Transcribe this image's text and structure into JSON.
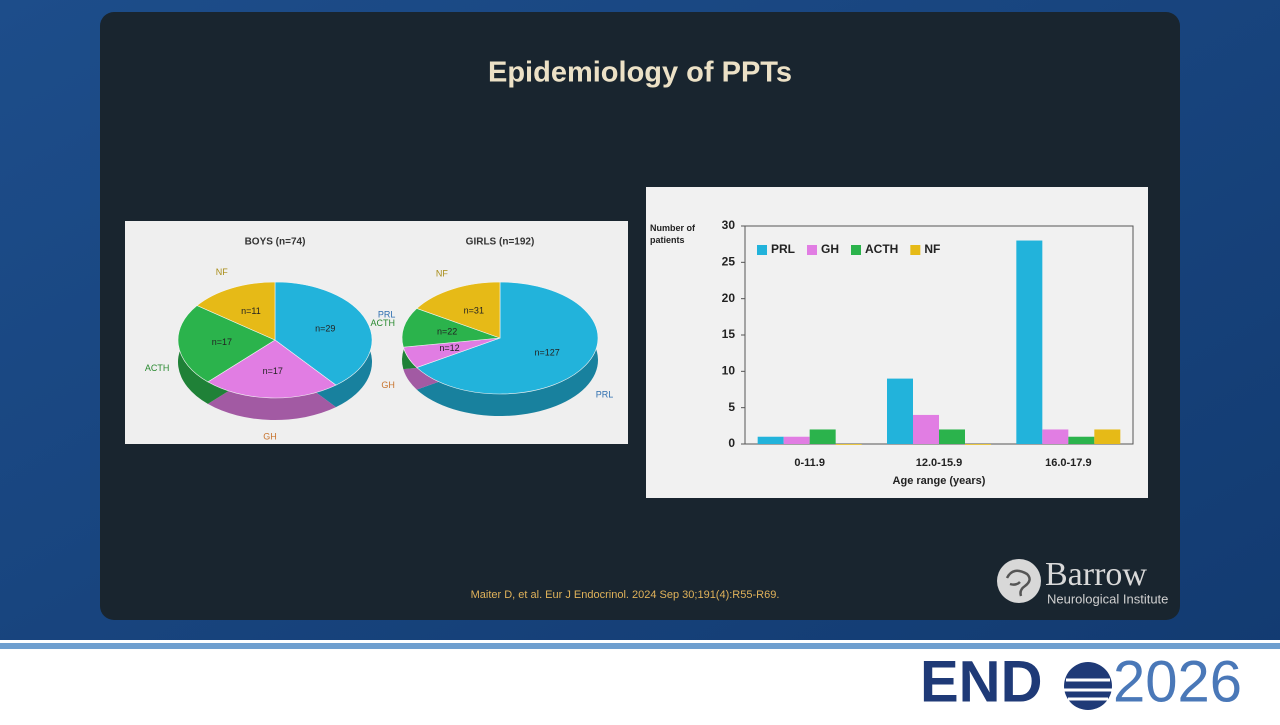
{
  "slide": {
    "title": "Epidemiology of PPTs",
    "citation": "Maiter D, et al. Eur J Endocrinol. 2024 Sep 30;191(4):R55-R69.",
    "logo_name": "Barrow",
    "logo_subtitle": "Neurological Institute",
    "brand_left": "END",
    "brand_right": "2026"
  },
  "chart_data": [
    {
      "type": "pie",
      "title": "BOYS (n=74)",
      "categories": [
        "PRL",
        "GH",
        "ACTH",
        "NF"
      ],
      "values": [
        29,
        17,
        17,
        11
      ],
      "value_labels": [
        "n=29",
        "n=17",
        "n=17",
        "n=11"
      ],
      "colors": [
        "#22b3db",
        "#e17de3",
        "#2bb34c",
        "#e6ba17"
      ],
      "label_colors": [
        "#2f6fb0",
        "#c8742e",
        "#2a8a30",
        "#a88c16"
      ]
    },
    {
      "type": "pie",
      "title": "GIRLS (n=192)",
      "categories": [
        "PRL",
        "GH",
        "ACTH",
        "NF"
      ],
      "values": [
        127,
        12,
        22,
        31
      ],
      "value_labels": [
        "n=127",
        "n=12",
        "n=22",
        "n=31"
      ],
      "colors": [
        "#22b3db",
        "#e17de3",
        "#2bb34c",
        "#e6ba17"
      ],
      "label_colors": [
        "#2f6fb0",
        "#c8742e",
        "#2a8a30",
        "#a88c16"
      ]
    },
    {
      "type": "bar",
      "x_label": "Age range (years)",
      "y_label": "Number of patients",
      "categories": [
        "0-11.9",
        "12.0-15.9",
        "16.0-17.9"
      ],
      "series": [
        {
          "name": "PRL",
          "color": "#22b3db",
          "values": [
            1,
            9,
            28
          ]
        },
        {
          "name": "GH",
          "color": "#e17de3",
          "values": [
            1,
            4,
            2
          ]
        },
        {
          "name": "ACTH",
          "color": "#2bb34c",
          "values": [
            2,
            2,
            1
          ]
        },
        {
          "name": "NF",
          "color": "#e6ba17",
          "values": [
            0,
            0,
            2
          ]
        }
      ],
      "ylim": [
        0,
        30
      ],
      "yticks": [
        0,
        5,
        10,
        15,
        20,
        25,
        30
      ],
      "legend": "top-left"
    }
  ]
}
